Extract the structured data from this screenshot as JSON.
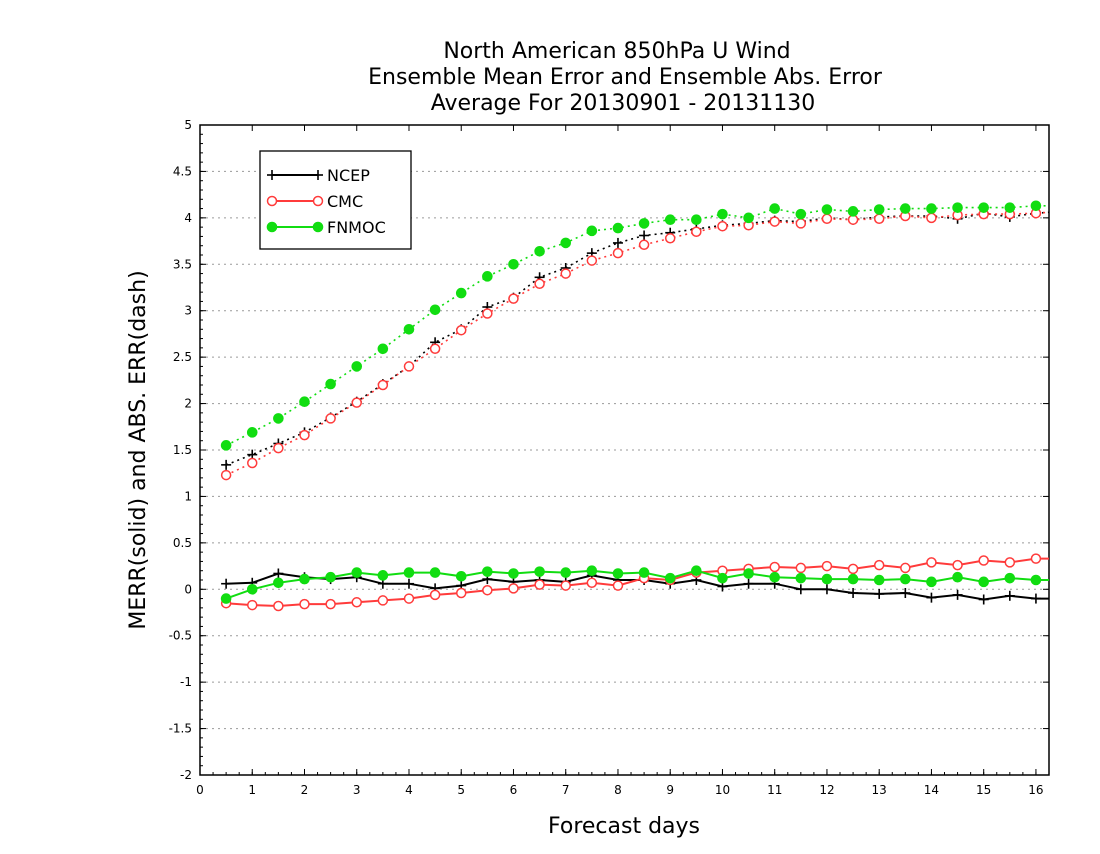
{
  "chart_data": {
    "type": "line",
    "title_lines": [
      "North American 850hPa U Wind",
      "Ensemble Mean Error and Ensemble Abs. Error",
      "Average For 20130901 - 20131130"
    ],
    "xlabel": "Forecast days",
    "ylabel": "MERR(solid) and ABS. ERR(dash)",
    "xlim": [
      0,
      16.25
    ],
    "ylim": [
      -2,
      5
    ],
    "xticks": [
      0,
      1,
      2,
      3,
      4,
      5,
      6,
      7,
      8,
      9,
      10,
      11,
      12,
      13,
      14,
      15,
      16
    ],
    "xtick_labels": [
      "0",
      "1",
      "2",
      "3",
      "4",
      "5",
      "6",
      "7",
      "8",
      "9",
      "10",
      "11",
      "12",
      "13",
      "14",
      "15",
      "16"
    ],
    "yticks": [
      -2,
      -1.5,
      -1,
      -0.5,
      0,
      0.5,
      1,
      1.5,
      2,
      2.5,
      3,
      3.5,
      4,
      4.5,
      5
    ],
    "ytick_labels": [
      "-2",
      "-1.5",
      "-1",
      "-0.5",
      "0",
      "0.5",
      "1",
      "1.5",
      "2",
      "2.5",
      "3",
      "3.5",
      "4",
      "4.5",
      "5"
    ],
    "grid": "horizontal dotted",
    "legend_position": "top-left",
    "x": [
      0.5,
      1,
      1.5,
      2,
      2.5,
      3,
      3.5,
      4,
      4.5,
      5,
      5.5,
      6,
      6.5,
      7,
      7.5,
      8,
      8.5,
      9,
      9.5,
      10,
      10.5,
      11,
      11.5,
      12,
      12.5,
      13,
      13.5,
      14,
      14.5,
      15,
      15.5,
      16,
      16.25
    ],
    "series": [
      {
        "name": "NCEP",
        "color": "#000000",
        "marker": "plus",
        "merr": [
          0.06,
          0.07,
          0.17,
          0.13,
          0.11,
          0.13,
          0.06,
          0.06,
          0.01,
          0.04,
          0.11,
          0.08,
          0.1,
          0.08,
          0.15,
          0.1,
          0.1,
          0.06,
          0.1,
          0.03,
          0.06,
          0.06,
          0.0,
          0.0,
          -0.04,
          -0.05,
          -0.04,
          -0.09,
          -0.06,
          -0.11,
          -0.07,
          -0.1,
          -0.1
        ],
        "abserr": [
          1.34,
          1.45,
          1.57,
          1.69,
          1.85,
          2.02,
          2.21,
          2.4,
          2.66,
          2.8,
          3.04,
          3.14,
          3.36,
          3.46,
          3.62,
          3.73,
          3.81,
          3.84,
          3.88,
          3.92,
          3.94,
          3.97,
          3.96,
          4.0,
          3.98,
          4.01,
          4.02,
          4.02,
          3.99,
          4.05,
          4.01,
          4.05,
          4.06
        ]
      },
      {
        "name": "CMC",
        "color": "#ff3b3b",
        "marker": "open-circle",
        "merr": [
          -0.15,
          -0.17,
          -0.18,
          -0.16,
          -0.16,
          -0.14,
          -0.12,
          -0.1,
          -0.06,
          -0.04,
          -0.01,
          0.01,
          0.05,
          0.04,
          0.07,
          0.04,
          0.12,
          0.1,
          0.18,
          0.2,
          0.22,
          0.24,
          0.23,
          0.25,
          0.22,
          0.26,
          0.23,
          0.29,
          0.26,
          0.31,
          0.29,
          0.33,
          0.33
        ],
        "abserr": [
          1.23,
          1.36,
          1.52,
          1.66,
          1.84,
          2.01,
          2.2,
          2.4,
          2.59,
          2.79,
          2.97,
          3.13,
          3.29,
          3.4,
          3.54,
          3.62,
          3.71,
          3.78,
          3.85,
          3.91,
          3.92,
          3.96,
          3.94,
          3.99,
          3.98,
          3.99,
          4.02,
          4.0,
          4.03,
          4.04,
          4.04,
          4.05,
          4.06
        ]
      },
      {
        "name": "FNMOC",
        "color": "#11dd11",
        "marker": "filled-circle",
        "merr": [
          -0.1,
          0.0,
          0.07,
          0.11,
          0.13,
          0.18,
          0.15,
          0.18,
          0.18,
          0.14,
          0.19,
          0.17,
          0.19,
          0.18,
          0.2,
          0.17,
          0.18,
          0.12,
          0.2,
          0.12,
          0.17,
          0.13,
          0.12,
          0.11,
          0.11,
          0.1,
          0.11,
          0.08,
          0.13,
          0.08,
          0.12,
          0.1,
          0.1
        ],
        "abserr": [
          1.55,
          1.69,
          1.84,
          2.02,
          2.21,
          2.4,
          2.59,
          2.8,
          3.01,
          3.19,
          3.37,
          3.5,
          3.64,
          3.73,
          3.86,
          3.89,
          3.94,
          3.98,
          3.98,
          4.04,
          4.0,
          4.1,
          4.04,
          4.09,
          4.07,
          4.09,
          4.1,
          4.1,
          4.11,
          4.11,
          4.11,
          4.13,
          4.13
        ]
      }
    ]
  }
}
